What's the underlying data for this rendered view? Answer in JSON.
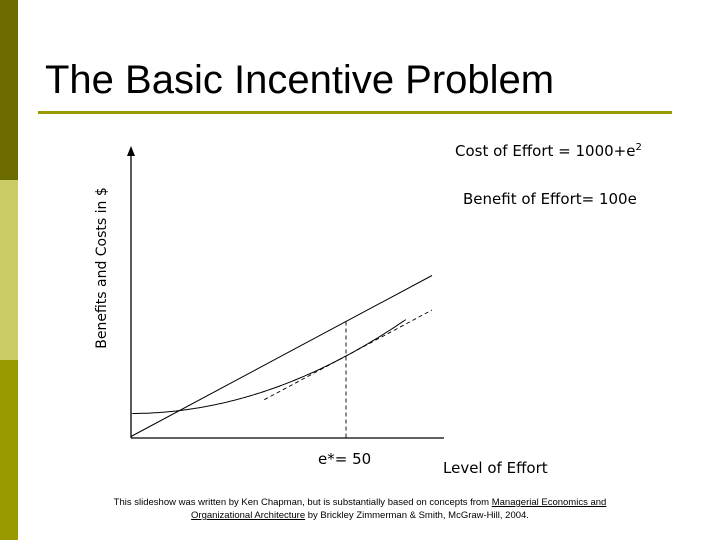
{
  "slide": {
    "title": "The Basic Incentive Problem",
    "accent_colors": [
      "#6b6b00",
      "#cccc66",
      "#999900"
    ]
  },
  "chart_data": {
    "type": "line",
    "title": "",
    "xlabel": "Level of Effort",
    "ylabel": "Benefits and Costs in $",
    "x_marker_label": "e*= 50",
    "optimal_effort": 50,
    "series": [
      {
        "name": "Cost of Effort = 1000+e",
        "superscript": "2",
        "formula": "1000 + e^2"
      },
      {
        "name": "Benefit of Effort= 100e",
        "formula": "100e"
      }
    ],
    "tangent_line": "slope 100 touching cost curve at e = 50",
    "axis_ticks": false,
    "grid": false
  },
  "footer": {
    "line1_prefix": "This slideshow was written by Ken Chapman, but is substantially based on concepts from ",
    "book_part1": "Managerial Economics and",
    "book_part2": "Organizational Architecture",
    "line2_suffix": " by Brickley Zimmerman & Smith, McGraw-Hill, 2004."
  }
}
